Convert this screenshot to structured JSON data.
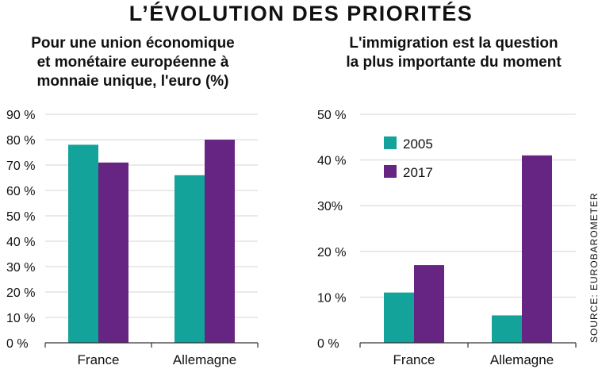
{
  "title": "L’ÉVOLUTION DES PRIORITÉS",
  "source": "SOURCE: EUROBAROMETER",
  "colors": {
    "2005": "#13a39a",
    "2017": "#662582"
  },
  "chart_data": [
    {
      "type": "bar",
      "title": "Pour une union économique et monétaire européenne à monnaie unique, l'euro (%)",
      "title_lines": [
        "Pour une union économique",
        "et monétaire européenne à",
        "monnaie unique, l'euro (%)"
      ],
      "categories": [
        "France",
        "Allemagne"
      ],
      "series": [
        {
          "values": [
            78,
            66
          ]
        },
        {
          "values": [
            71,
            80
          ]
        }
      ],
      "ylim": [
        0,
        90
      ],
      "yticks": [
        0,
        10,
        20,
        30,
        40,
        50,
        60,
        70,
        80,
        90
      ],
      "ytick_labels": [
        "0 %",
        "10 %",
        "20 %",
        "30 %",
        "40 %",
        "50 %",
        "60 %",
        "70 %",
        "80 %",
        "90 %"
      ],
      "grid": true
    },
    {
      "type": "bar",
      "title": "L'immigration est la question la plus importante du moment",
      "title_lines": [
        "L'immigration est la question",
        "la plus importante du moment"
      ],
      "categories": [
        "France",
        "Allemagne"
      ],
      "series": [
        {
          "name": "2005",
          "values": [
            11,
            6
          ]
        },
        {
          "name": "2017",
          "values": [
            17,
            41
          ]
        }
      ],
      "ylim": [
        0,
        50
      ],
      "yticks": [
        0,
        10,
        20,
        30,
        40,
        50
      ],
      "ytick_labels": [
        "0 %",
        "10 %",
        "20 %",
        "30%",
        "40 %",
        "50 %"
      ],
      "legend": "top-left",
      "grid": true
    }
  ]
}
